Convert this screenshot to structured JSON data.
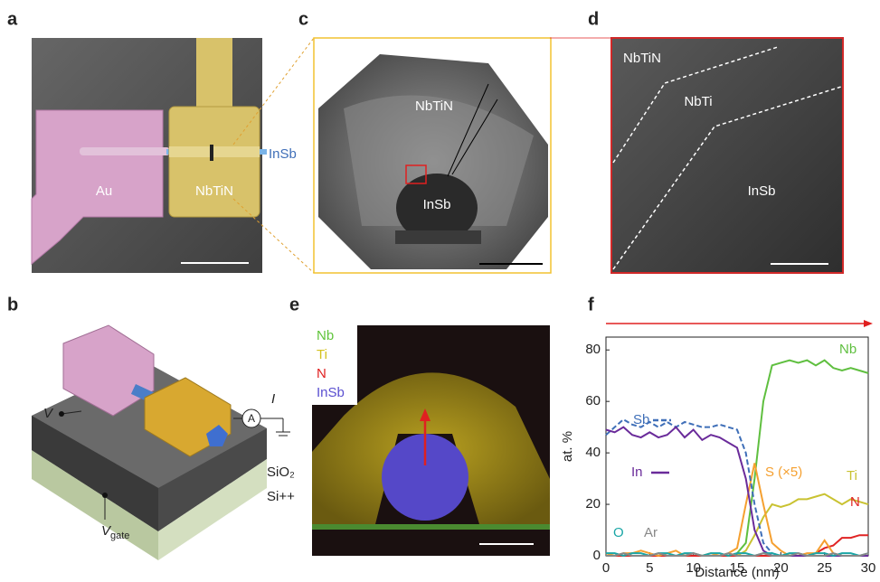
{
  "panels": {
    "a": {
      "letter": "a",
      "au": "Au",
      "nbtin": "NbTiN",
      "insb": "InSb"
    },
    "b": {
      "letter": "b",
      "v": "V",
      "i": "I",
      "ammeter": "A",
      "sio2": "SiO₂",
      "si": "Si++",
      "vgate_symbol": "V",
      "vgate_subscript": "gate"
    },
    "c": {
      "letter": "c",
      "nbtin": "NbTiN",
      "insb": "InSb"
    },
    "d": {
      "letter": "d",
      "nbtin": "NbTiN",
      "nbti": "NbTi",
      "insb": "InSb"
    },
    "e": {
      "letter": "e",
      "legend": [
        {
          "name": "Nb",
          "color": "#5fc43a"
        },
        {
          "name": "Ti",
          "color": "#d4c21e"
        },
        {
          "name": "N",
          "color": "#e02020"
        },
        {
          "name": "InSb",
          "color": "#5a4fd0"
        }
      ]
    }
  },
  "chart_data": {
    "type": "line",
    "letter": "f",
    "xlabel": "Distance (nm)",
    "ylabel": "at. %",
    "x": [
      0,
      1,
      2,
      3,
      4,
      5,
      6,
      7,
      8,
      9,
      10,
      11,
      12,
      13,
      14,
      15,
      16,
      17,
      18,
      19,
      20,
      21,
      22,
      23,
      24,
      25,
      26,
      27,
      28,
      29,
      30
    ],
    "xlim": [
      0,
      30
    ],
    "xticks": [
      0,
      5,
      10,
      15,
      20,
      25,
      30
    ],
    "ylim": [
      0,
      85
    ],
    "yticks": [
      0,
      20,
      40,
      60,
      80
    ],
    "series": [
      {
        "name": "Nb",
        "color": "#5fbf3f",
        "values": [
          0,
          0,
          0,
          0,
          0,
          0,
          0,
          0,
          0,
          0,
          0,
          0,
          0,
          0,
          0,
          1,
          5,
          30,
          60,
          74,
          75,
          76,
          75,
          76,
          74,
          76,
          73,
          72,
          73,
          72,
          71
        ]
      },
      {
        "name": "Ti",
        "color": "#c9c231",
        "values": [
          0,
          0,
          0,
          0,
          0,
          0,
          0,
          0,
          0,
          0,
          0,
          0,
          0,
          0,
          0,
          0,
          2,
          8,
          15,
          20,
          19,
          20,
          22,
          22,
          23,
          24,
          22,
          20,
          22,
          21,
          20
        ]
      },
      {
        "name": "N",
        "color": "#e02424",
        "values": [
          0,
          0,
          0,
          0,
          0,
          0,
          0,
          0,
          0,
          0,
          0,
          0,
          0,
          0,
          0,
          0,
          0,
          0,
          0,
          0,
          0,
          0,
          0,
          0,
          1,
          3,
          4,
          7,
          7,
          8,
          8
        ]
      },
      {
        "name": "S (×5)",
        "color": "#f5a030",
        "values": [
          1,
          0,
          1,
          1,
          2,
          1,
          0,
          1,
          2,
          0,
          1,
          0,
          1,
          0,
          1,
          3,
          20,
          36,
          20,
          5,
          2,
          0,
          0,
          1,
          1,
          6,
          1,
          0,
          0,
          0,
          0
        ]
      },
      {
        "name": "Sb",
        "color": "#3f6fb8",
        "dash": true,
        "values": [
          47,
          50,
          53,
          51,
          50,
          52,
          50,
          52,
          50,
          52,
          51,
          50,
          50,
          51,
          50,
          49,
          40,
          20,
          5,
          1,
          0,
          0,
          0,
          0,
          0,
          0,
          0,
          0,
          0,
          0,
          0
        ]
      },
      {
        "name": "In",
        "color": "#6a2b9a",
        "values": [
          49,
          48,
          50,
          47,
          46,
          48,
          46,
          47,
          50,
          46,
          49,
          45,
          47,
          46,
          44,
          42,
          30,
          10,
          2,
          0,
          0,
          0,
          0,
          0,
          0,
          0,
          0,
          0,
          0,
          0,
          0
        ]
      },
      {
        "name": "O",
        "color": "#1aa6a6",
        "values": [
          1,
          1,
          0,
          1,
          1,
          0,
          1,
          1,
          0,
          1,
          1,
          0,
          1,
          1,
          0,
          1,
          1,
          0,
          1,
          1,
          0,
          1,
          1,
          0,
          1,
          1,
          0,
          1,
          1,
          0,
          1
        ]
      },
      {
        "name": "Ar",
        "color": "#888888",
        "values": [
          0,
          0,
          1,
          0,
          0,
          0,
          1,
          0,
          0,
          0,
          1,
          0,
          0,
          0,
          1,
          0,
          0,
          0,
          1,
          0,
          0,
          0,
          1,
          0,
          0,
          0,
          1,
          0,
          0,
          0,
          1
        ]
      }
    ]
  }
}
